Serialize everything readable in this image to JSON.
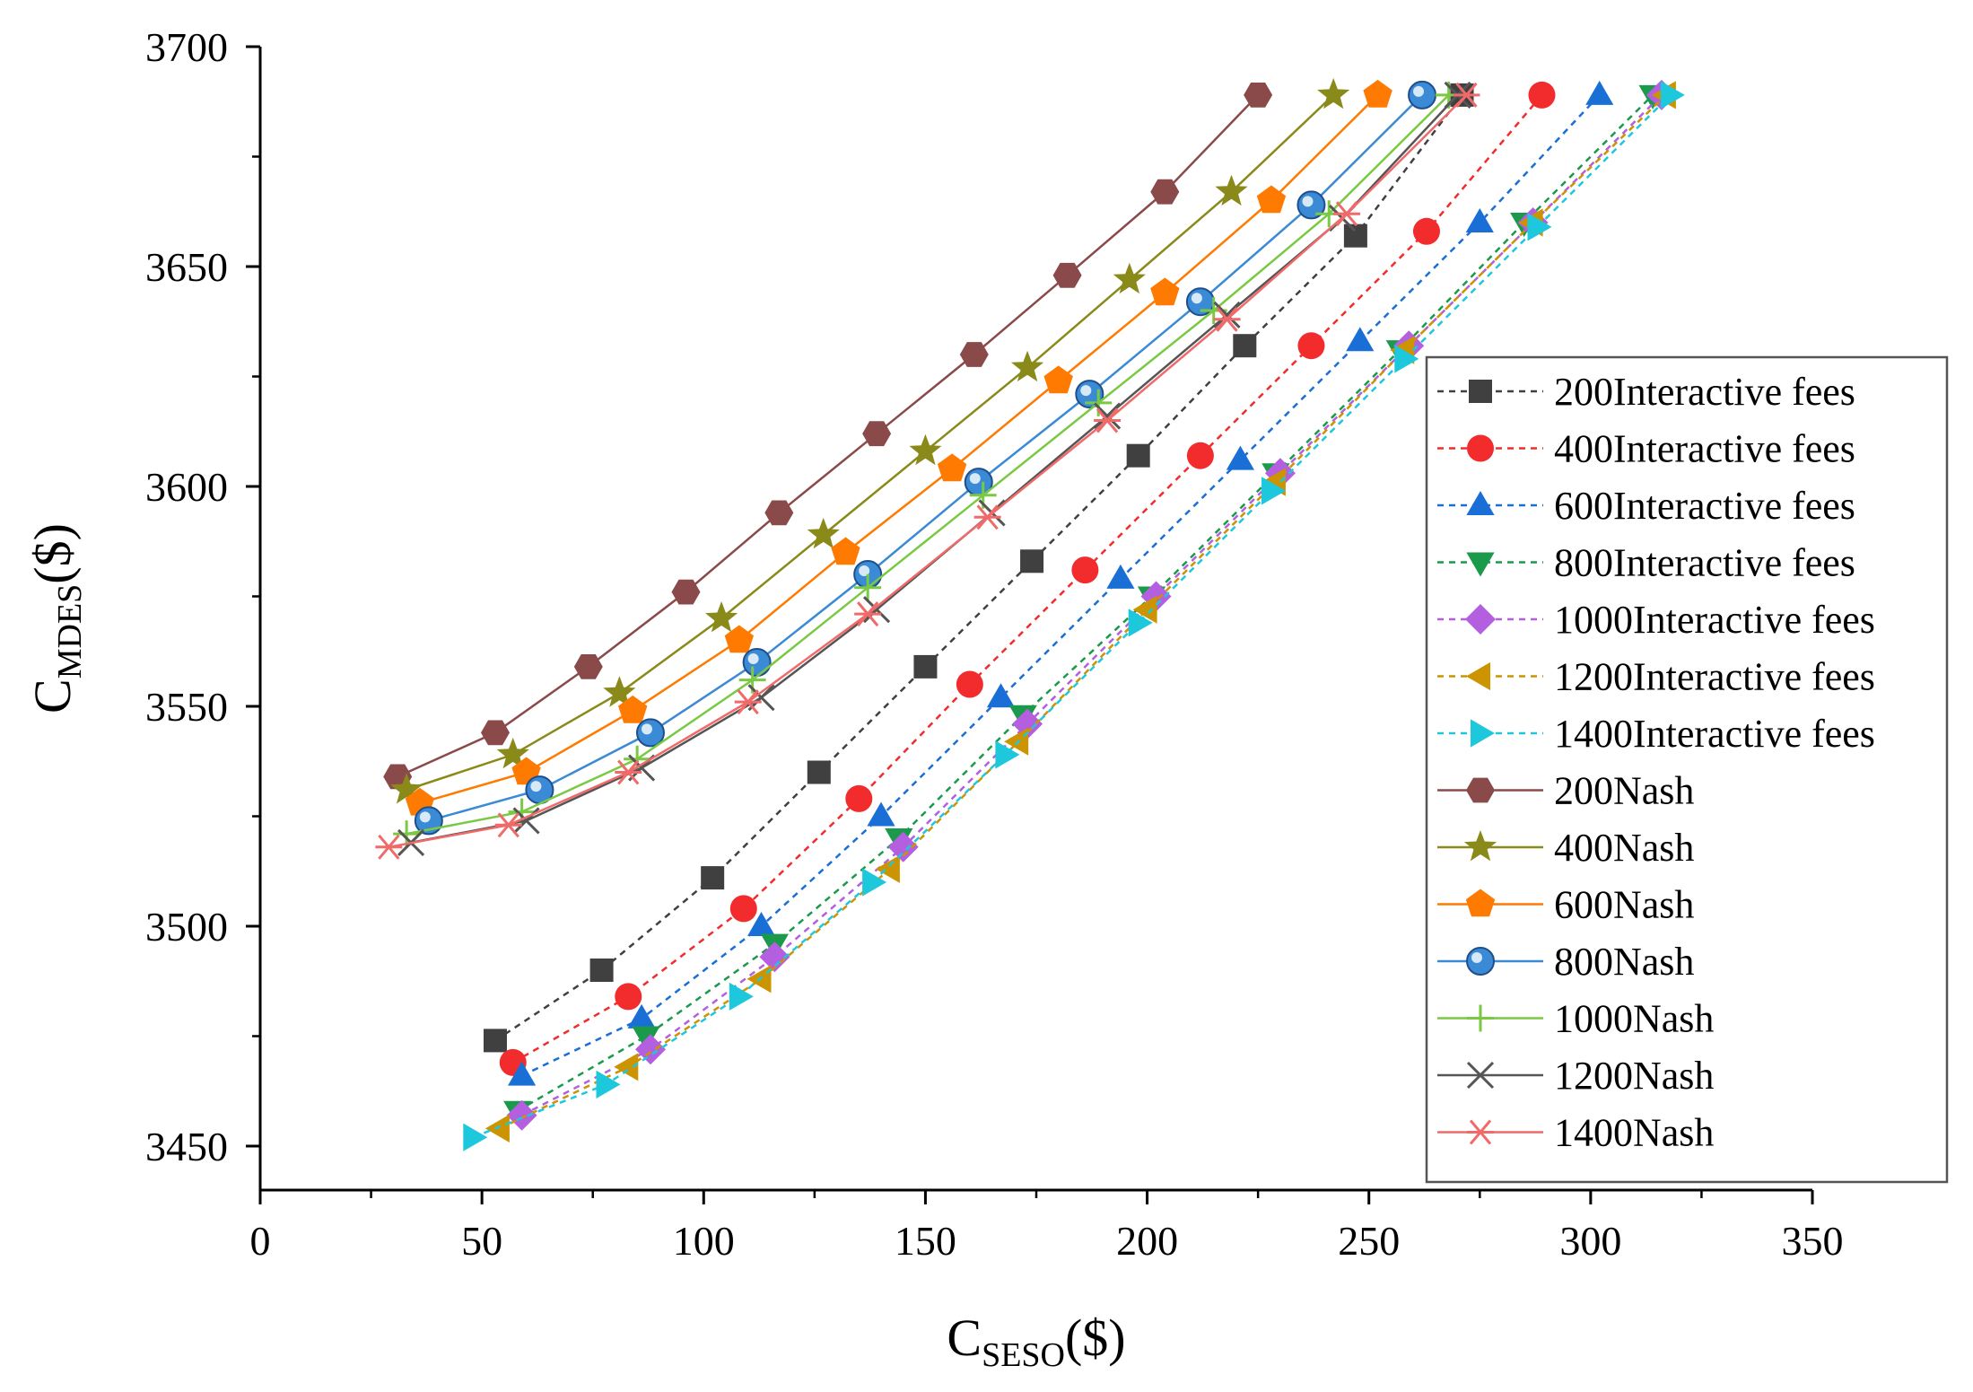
{
  "chart_data": {
    "type": "scatter",
    "title": "",
    "xlabel": {
      "main": "C",
      "sub": "SESO",
      "suffix": "($)"
    },
    "ylabel": {
      "main": "C",
      "sub": "MDES",
      "suffix": "($)"
    },
    "xlim": [
      0,
      350
    ],
    "ylim": [
      3440,
      3700
    ],
    "xticks": [
      0,
      50,
      100,
      150,
      200,
      250,
      300,
      350
    ],
    "yticks": [
      3450,
      3500,
      3550,
      3600,
      3650,
      3700
    ],
    "xtick_labels": [
      "0",
      "50",
      "100",
      "150",
      "200",
      "250",
      "300",
      "350"
    ],
    "ytick_labels": [
      "3450",
      "3500",
      "3550",
      "3600",
      "3650",
      "3700"
    ],
    "grid": false,
    "legend_position": "right",
    "series": [
      {
        "name": "200Interactive fees",
        "color": "#404040",
        "marker": "square",
        "dashed": true,
        "x": [
          53,
          77,
          102,
          126,
          150,
          174,
          198,
          222,
          247,
          271
        ],
        "y": [
          3474,
          3490,
          3511,
          3535,
          3559,
          3583,
          3607,
          3632,
          3657,
          3689
        ]
      },
      {
        "name": "400Interactive fees",
        "color": "#f22c2c",
        "marker": "circle",
        "dashed": true,
        "x": [
          57,
          83,
          109,
          135,
          160,
          186,
          212,
          237,
          263,
          289
        ],
        "y": [
          3469,
          3484,
          3504,
          3529,
          3555,
          3581,
          3607,
          3632,
          3658,
          3689
        ]
      },
      {
        "name": "600Interactive fees",
        "color": "#1a6fd6",
        "marker": "triangle-up",
        "dashed": true,
        "x": [
          59,
          86,
          113,
          140,
          167,
          194,
          221,
          248,
          275,
          302
        ],
        "y": [
          3466,
          3479,
          3500,
          3525,
          3552,
          3579,
          3606,
          3633,
          3660,
          3689
        ]
      },
      {
        "name": "800Interactive fees",
        "color": "#1a9a4a",
        "marker": "triangle-down",
        "dashed": true,
        "x": [
          58,
          87,
          116,
          144,
          172,
          201,
          229,
          257,
          285,
          314
        ],
        "y": [
          3458,
          3475,
          3496,
          3520,
          3548,
          3575,
          3603,
          3631,
          3660,
          3689
        ]
      },
      {
        "name": "1000Interactive fees",
        "color": "#b35fe0",
        "marker": "diamond",
        "dashed": true,
        "x": [
          59,
          88,
          116,
          145,
          173,
          202,
          230,
          259,
          287,
          316
        ],
        "y": [
          3457,
          3472,
          3493,
          3518,
          3546,
          3575,
          3603,
          3632,
          3660,
          3689
        ]
      },
      {
        "name": "1200Interactive fees",
        "color": "#cc9400",
        "marker": "triangle-left",
        "dashed": true,
        "x": [
          54,
          83,
          113,
          142,
          171,
          200,
          229,
          258,
          287,
          317
        ],
        "y": [
          3454,
          3468,
          3488,
          3513,
          3542,
          3572,
          3601,
          3631,
          3660,
          3689
        ]
      },
      {
        "name": "1400Interactive fees",
        "color": "#1ec8dc",
        "marker": "triangle-right",
        "dashed": true,
        "x": [
          48,
          78,
          108,
          138,
          168,
          198,
          228,
          258,
          288,
          318
        ],
        "y": [
          3452,
          3464,
          3484,
          3510,
          3539,
          3569,
          3599,
          3629,
          3659,
          3689
        ]
      },
      {
        "name": "200Nash",
        "color": "#8b4a4a",
        "marker": "hexagon",
        "dashed": false,
        "x": [
          31,
          53,
          74,
          96,
          117,
          139,
          161,
          182,
          204,
          225
        ],
        "y": [
          3534,
          3544,
          3559,
          3576,
          3594,
          3612,
          3630,
          3648,
          3667,
          3689
        ]
      },
      {
        "name": "400Nash",
        "color": "#8a8a1a",
        "marker": "star",
        "dashed": false,
        "x": [
          33,
          57,
          81,
          104,
          127,
          150,
          173,
          196,
          219,
          242
        ],
        "y": [
          3531,
          3539,
          3553,
          3570,
          3589,
          3608,
          3627,
          3647,
          3667,
          3689
        ]
      },
      {
        "name": "600Nash",
        "color": "#ff7a00",
        "marker": "pentagon",
        "dashed": false,
        "x": [
          36,
          60,
          84,
          108,
          132,
          156,
          180,
          204,
          228,
          252
        ],
        "y": [
          3528,
          3535,
          3549,
          3565,
          3585,
          3604,
          3624,
          3644,
          3665,
          3689
        ]
      },
      {
        "name": "800Nash",
        "color": "#3a8ad6",
        "marker": "sphere",
        "dashed": false,
        "x": [
          38,
          63,
          88,
          112,
          137,
          162,
          187,
          212,
          237,
          262
        ],
        "y": [
          3524,
          3531,
          3544,
          3560,
          3580,
          3601,
          3621,
          3642,
          3664,
          3689
        ]
      },
      {
        "name": "1000Nash",
        "color": "#7ac943",
        "marker": "plus",
        "dashed": false,
        "x": [
          33,
          59,
          85,
          111,
          137,
          163,
          189,
          215,
          241,
          268
        ],
        "y": [
          3521,
          3526,
          3538,
          3556,
          3577,
          3598,
          3619,
          3640,
          3662,
          3689
        ]
      },
      {
        "name": "1200Nash",
        "color": "#555555",
        "marker": "cross",
        "dashed": false,
        "x": [
          34,
          60,
          86,
          113,
          139,
          165,
          191,
          218,
          244,
          270
        ],
        "y": [
          3519,
          3524,
          3536,
          3552,
          3572,
          3594,
          3616,
          3639,
          3661,
          3689
        ]
      },
      {
        "name": "1400Nash",
        "color": "#f06a6a",
        "marker": "asterisk",
        "dashed": false,
        "x": [
          29,
          56,
          83,
          110,
          137,
          164,
          191,
          218,
          245,
          272
        ],
        "y": [
          3518,
          3523,
          3535,
          3551,
          3571,
          3593,
          3615,
          3638,
          3662,
          3689
        ]
      }
    ]
  }
}
